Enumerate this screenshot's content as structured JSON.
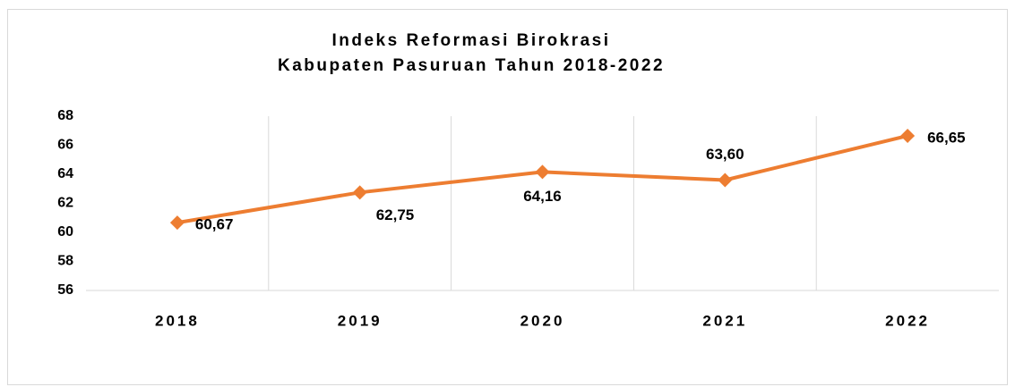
{
  "chart_data": {
    "type": "line",
    "title": [
      "Indeks Reformasi Birokrasi",
      "Kabupaten Pasuruan Tahun 2018-2022"
    ],
    "categories": [
      "2018",
      "2019",
      "2020",
      "2021",
      "2022"
    ],
    "series": [
      {
        "name": "Indeks Reformasi Birokrasi",
        "color": "#ed7d31",
        "values": [
          60.67,
          62.75,
          64.16,
          63.6,
          66.65
        ],
        "value_labels": [
          "60,67",
          "62,75",
          "64,16",
          "63,60",
          "66,65"
        ]
      }
    ],
    "ylim": [
      56,
      68
    ],
    "yticks": [
      56,
      58,
      60,
      62,
      64,
      66,
      68
    ],
    "grid": true
  }
}
